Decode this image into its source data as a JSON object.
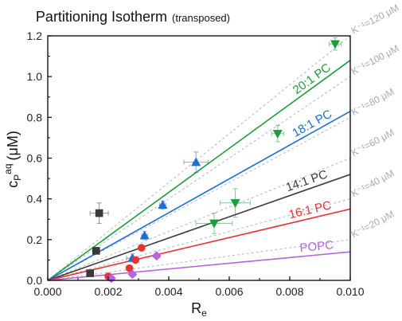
{
  "chart_data": {
    "type": "scatter",
    "title": "Partitioning Isotherm",
    "subtitle": "(transposed)",
    "xlabel": "R",
    "xlabel_sub": "e",
    "ylabel_main": "c",
    "ylabel_sub": "P",
    "ylabel_sup": "aq",
    "ylabel_unit": "(μM)",
    "xlim": [
      0,
      0.01
    ],
    "ylim": [
      0,
      1.2
    ],
    "xticks": [
      0,
      0.002,
      0.004,
      0.006,
      0.008,
      0.01
    ],
    "xtick_labels": [
      "0.000",
      "0.002",
      "0.004",
      "0.006",
      "0.008",
      "0.010"
    ],
    "yticks": [
      0,
      0.2,
      0.4,
      0.6,
      0.8,
      1.0,
      1.2
    ],
    "ytick_labels": [
      "0.0",
      "0.2",
      "0.4",
      "0.6",
      "0.8",
      "1.0",
      "1.2"
    ],
    "grid": false,
    "reference_lines": [
      {
        "label": "K⁻¹=20 μM",
        "slope": 20
      },
      {
        "label": "K⁻¹=40 μM",
        "slope": 40
      },
      {
        "label": "K⁻¹=60 μM",
        "slope": 60
      },
      {
        "label": "K⁻¹=80 μM",
        "slope": 80
      },
      {
        "label": "K⁻¹=100 μM",
        "slope": 100
      },
      {
        "label": "K⁻¹=120 μM",
        "slope": 120
      }
    ],
    "series": [
      {
        "name": "20:1 PC",
        "color": "#1e9b3a",
        "marker": "triangle-down",
        "fit_slope": 108,
        "points": [
          {
            "x": 0.0055,
            "y": 0.28,
            "xerr": 0.0006,
            "yerr": 0.05
          },
          {
            "x": 0.0062,
            "y": 0.38,
            "xerr": 0.0005,
            "yerr": 0.07
          },
          {
            "x": 0.0076,
            "y": 0.72,
            "xerr": 0.0002,
            "yerr": 0.04
          },
          {
            "x": 0.0095,
            "y": 1.16,
            "xerr": 0.0002,
            "yerr": 0.03
          }
        ]
      },
      {
        "name": "18:1 PC",
        "color": "#1a6fd4",
        "marker": "triangle-up",
        "fit_slope": 83,
        "points": [
          {
            "x": 0.0028,
            "y": 0.11,
            "xerr": 0.0002,
            "yerr": 0.02
          },
          {
            "x": 0.0032,
            "y": 0.22,
            "xerr": 0.0001,
            "yerr": 0.02
          },
          {
            "x": 0.0038,
            "y": 0.37,
            "xerr": 0.0001,
            "yerr": 0.02
          },
          {
            "x": 0.0049,
            "y": 0.58,
            "xerr": 0.0004,
            "yerr": 0.05
          }
        ]
      },
      {
        "name": "14:1 PC",
        "color": "#3a3a3a",
        "marker": "square",
        "fit_slope": 52,
        "points": [
          {
            "x": 0.0014,
            "y": 0.035,
            "xerr": 0.0001,
            "yerr": 0.005
          },
          {
            "x": 0.0016,
            "y": 0.145,
            "xerr": 0.0001,
            "yerr": 0.01
          },
          {
            "x": 0.0017,
            "y": 0.33,
            "xerr": 0.0003,
            "yerr": 0.05
          }
        ]
      },
      {
        "name": "16:1 PC",
        "color": "#e63232",
        "marker": "circle",
        "fit_slope": 35,
        "points": [
          {
            "x": 0.002,
            "y": 0.02,
            "xerr": 0.0001,
            "yerr": 0.005
          },
          {
            "x": 0.0027,
            "y": 0.06,
            "xerr": 0.0001,
            "yerr": 0.01
          },
          {
            "x": 0.0029,
            "y": 0.1,
            "xerr": 0.0001,
            "yerr": 0.01
          },
          {
            "x": 0.0031,
            "y": 0.16,
            "xerr": 0.0001,
            "yerr": 0.01
          }
        ]
      },
      {
        "name": "POPC",
        "color": "#b464dc",
        "marker": "diamond",
        "fit_slope": 14,
        "points": [
          {
            "x": 0.0021,
            "y": 0.01,
            "xerr": 0.0001,
            "yerr": 0.005
          },
          {
            "x": 0.0028,
            "y": 0.03,
            "xerr": 0.0001,
            "yerr": 0.005
          },
          {
            "x": 0.0036,
            "y": 0.12,
            "xerr": 0.0001,
            "yerr": 0.01
          }
        ]
      }
    ]
  }
}
